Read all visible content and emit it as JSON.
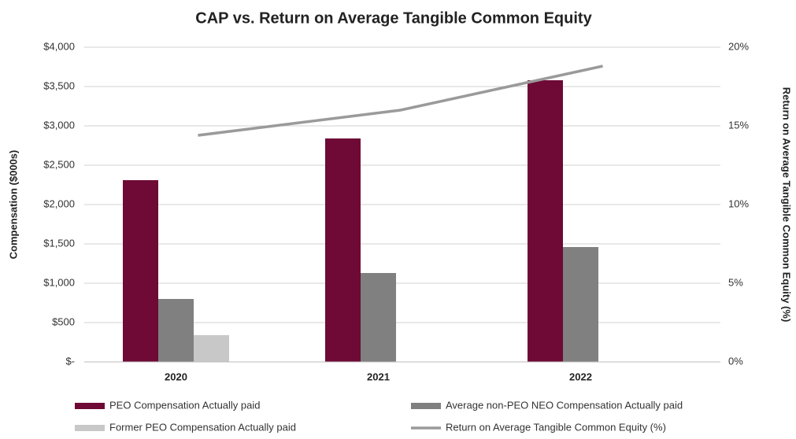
{
  "chart_data": {
    "type": "bar",
    "title": "CAP vs. Return on Average Tangible Common Equity",
    "ylabel": "Compensation ($000s)",
    "y2label": "Return on Average Tangible Common Equity (%)",
    "categories": [
      "2020",
      "2021",
      "2022"
    ],
    "series": [
      {
        "name": "PEO Compensation Actually paid",
        "color": "#6e0a35",
        "values": [
          2310,
          2840,
          3580
        ]
      },
      {
        "name": "Average non-PEO NEO Compensation Actually paid",
        "color": "#808080",
        "values": [
          800,
          1130,
          1460
        ]
      },
      {
        "name": "Former PEO Compensation Actually paid",
        "color": "#c8c8c8",
        "values": [
          340,
          null,
          null
        ]
      },
      {
        "name": "Return on Average Tangible Common Equity (%)",
        "color": "#9a9a9a",
        "type": "line",
        "axis": "y2",
        "values": [
          14.4,
          16.0,
          18.8
        ]
      }
    ],
    "ylim": [
      0,
      4000
    ],
    "yticks": [
      {
        "value": 0,
        "label": "$-"
      },
      {
        "value": 500,
        "label": "$500"
      },
      {
        "value": 1000,
        "label": "$1,000"
      },
      {
        "value": 1500,
        "label": "$1,500"
      },
      {
        "value": 2000,
        "label": "$2,000"
      },
      {
        "value": 2500,
        "label": "$2,500"
      },
      {
        "value": 3000,
        "label": "$3,000"
      },
      {
        "value": 3500,
        "label": "$3,500"
      },
      {
        "value": 4000,
        "label": "$4,000"
      }
    ],
    "y2lim": [
      0,
      20
    ],
    "y2ticks": [
      {
        "value": 0,
        "label": "0%"
      },
      {
        "value": 5,
        "label": "5%"
      },
      {
        "value": 10,
        "label": "10%"
      },
      {
        "value": 15,
        "label": "15%"
      },
      {
        "value": 20,
        "label": "20%"
      }
    ],
    "grid": true,
    "legend": "bottom"
  }
}
